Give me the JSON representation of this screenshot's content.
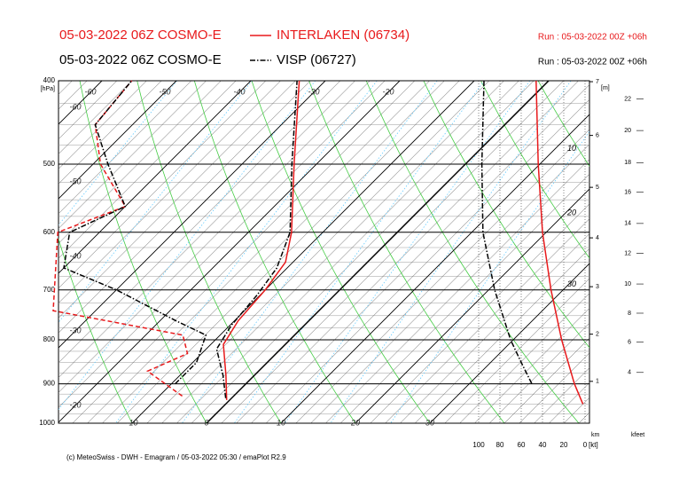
{
  "chart_data": {
    "type": "emagram",
    "series": [
      {
        "model": "05-03-2022 06Z COSMO-E",
        "name": "INTERLAKEN (06734)",
        "run": "Run : 05-03-2022 00Z +06h",
        "color": "#e8191b",
        "dash": "solid",
        "temperature": {
          "p": [
            940,
            880,
            810,
            760,
            700,
            650,
            600,
            500,
            400
          ],
          "t": [
            -0.4,
            -3.8,
            -8.3,
            -9.5,
            -10,
            -11,
            -14.2,
            -23,
            -33.5
          ]
        },
        "dewpoint": {
          "p": [
            930,
            870,
            830,
            790,
            740,
            600,
            560,
            500,
            450,
            400
          ],
          "t": [
            -6.9,
            -14.9,
            -11.9,
            -15,
            -35.7,
            -45.6,
            -40,
            -49,
            -55,
            -56
          ]
        },
        "wind": {
          "p": [
            400,
            500,
            600,
            700,
            800,
            900,
            950
          ],
          "kt": [
            46,
            44,
            40,
            32,
            22,
            10,
            2
          ]
        }
      },
      {
        "model": "05-03-2022 06Z COSMO-E",
        "name": "VISP (06727)",
        "run": "Run : 05-03-2022 00Z +06h",
        "color": "#000000",
        "dash": "dashdot",
        "temperature": {
          "p": [
            935,
            880,
            820,
            770,
            710,
            660,
            600,
            500,
            400
          ],
          "t": [
            -0.8,
            -4.2,
            -8.6,
            -9.8,
            -10.4,
            -11.4,
            -14.4,
            -23.3,
            -33.8
          ]
        },
        "dewpoint": {
          "p": [
            900,
            850,
            790,
            760,
            700,
            660,
            600,
            560,
            500,
            450,
            400
          ],
          "t": [
            -9.5,
            -9.5,
            -11.9,
            -17.9,
            -30,
            -40,
            -44,
            -40,
            -48,
            -55,
            -56
          ]
        },
        "wind": {
          "p": [
            400,
            500,
            600,
            700,
            800,
            850,
            900
          ],
          "kt": [
            95,
            97,
            96,
            85,
            70,
            60,
            50
          ]
        }
      }
    ],
    "ylim": [
      1000,
      400
    ],
    "yticks": [
      400,
      500,
      600,
      700,
      800,
      900,
      1000
    ],
    "y_unit": "[hPa]",
    "tticks": [
      -60,
      -50,
      -40,
      -30,
      -20,
      -10,
      0,
      10,
      20,
      30
    ],
    "wind_lim": [
      100,
      0
    ],
    "wind_ticks": [
      100,
      80,
      60,
      40,
      20,
      0
    ],
    "wind_unit": "[kt]",
    "km_label": "km",
    "km_unit": "[m]",
    "km_ticks": [
      {
        "value": 1,
        "p": 894
      },
      {
        "value": 2,
        "p": 788
      },
      {
        "value": 3,
        "p": 694
      },
      {
        "value": 4,
        "p": 609
      },
      {
        "value": 5,
        "p": 532
      },
      {
        "value": 6,
        "p": 463
      },
      {
        "value": 7,
        "p": 401
      }
    ],
    "kfeet_label": "kfeet",
    "kfeet_ticks": [
      {
        "value": 4,
        "p": 873
      },
      {
        "value": 6,
        "p": 805
      },
      {
        "value": 8,
        "p": 745
      },
      {
        "value": 10,
        "p": 689
      },
      {
        "value": 12,
        "p": 635
      },
      {
        "value": 14,
        "p": 586
      },
      {
        "value": 16,
        "p": 539
      },
      {
        "value": 18,
        "p": 498
      },
      {
        "value": 20,
        "p": 457
      },
      {
        "value": 22,
        "p": 420
      }
    ],
    "annotations": [
      {
        "text": "10",
        "p": 480
      },
      {
        "text": "20",
        "p": 570
      },
      {
        "text": "30",
        "p": 690
      }
    ],
    "footer": "(c) MeteoSwiss - DWH - Emagram / 05-03-2022 05:30 / emaPlot R2.9"
  }
}
